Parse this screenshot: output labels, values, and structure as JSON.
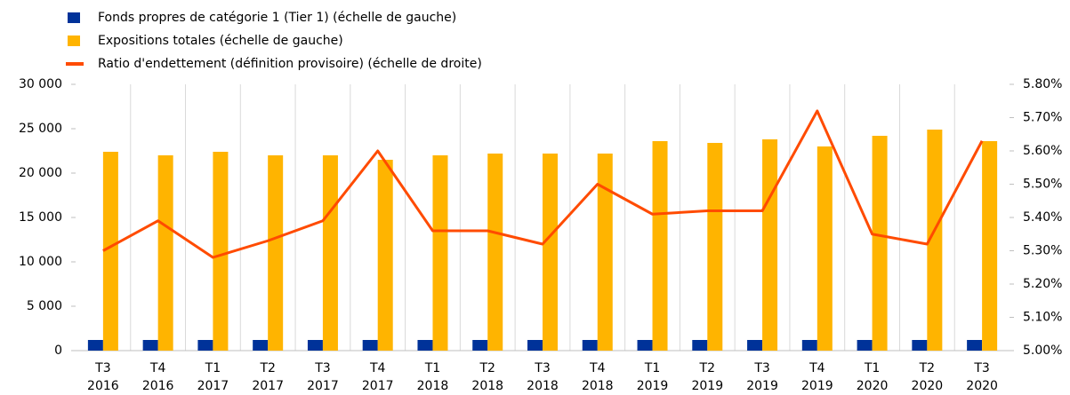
{
  "chart_data": {
    "type": "bar-line",
    "categories": [
      [
        "T3",
        "2016"
      ],
      [
        "T4",
        "2016"
      ],
      [
        "T1",
        "2017"
      ],
      [
        "T2",
        "2017"
      ],
      [
        "T3",
        "2017"
      ],
      [
        "T4",
        "2017"
      ],
      [
        "T1",
        "2018"
      ],
      [
        "T2",
        "2018"
      ],
      [
        "T3",
        "2018"
      ],
      [
        "T4",
        "2018"
      ],
      [
        "T1",
        "2019"
      ],
      [
        "T2",
        "2019"
      ],
      [
        "T3",
        "2019"
      ],
      [
        "T4",
        "2019"
      ],
      [
        "T1",
        "2020"
      ],
      [
        "T2",
        "2020"
      ],
      [
        "T3",
        "2020"
      ]
    ],
    "series": [
      {
        "name": "Fonds propres de catégorie 1 (Tier 1) (échelle de gauche)",
        "type": "bar",
        "color": "#003299",
        "values": [
          1200,
          1200,
          1200,
          1200,
          1200,
          1200,
          1200,
          1200,
          1200,
          1200,
          1200,
          1200,
          1200,
          1200,
          1200,
          1200,
          1200
        ]
      },
      {
        "name": "Expositions totales (échelle de gauche)",
        "type": "bar",
        "color": "#ffb400",
        "values": [
          22400,
          22000,
          22400,
          22000,
          22000,
          21500,
          22000,
          22200,
          22200,
          22200,
          23600,
          23400,
          23800,
          23000,
          24200,
          24900,
          23600
        ]
      },
      {
        "name": "Ratio d'endettement (définition provisoire) (échelle de droite)",
        "type": "line",
        "color": "#ff4b00",
        "axis": "y2",
        "values": [
          5.3,
          5.39,
          5.28,
          5.33,
          5.39,
          5.6,
          5.36,
          5.36,
          5.32,
          5.5,
          5.41,
          5.42,
          5.42,
          5.72,
          5.35,
          5.32,
          5.63
        ]
      }
    ],
    "ylim": [
      0,
      30000
    ],
    "yticks": [
      0,
      {
        "value": 5000,
        "label": "5 000"
      },
      {
        "value": 10000,
        "label": "10 000"
      },
      {
        "value": 15000,
        "label": "15 000"
      },
      {
        "value": 20000,
        "label": "20 000"
      },
      {
        "value": 25000,
        "label": "25 000"
      },
      {
        "value": 30000,
        "label": "30 000"
      }
    ],
    "y2lim": [
      5.0,
      5.8
    ],
    "y2ticks": [
      {
        "value": 5.0,
        "label": "5.00%"
      },
      {
        "value": 5.1,
        "label": "5.10%"
      },
      {
        "value": 5.2,
        "label": "5.20%"
      },
      {
        "value": 5.3,
        "label": "5.30%"
      },
      {
        "value": 5.4,
        "label": "5.40%"
      },
      {
        "value": 5.5,
        "label": "5.50%"
      },
      {
        "value": 5.6,
        "label": "5.60%"
      },
      {
        "value": 5.7,
        "label": "5.70%"
      },
      {
        "value": 5.8,
        "label": "5.80%"
      }
    ]
  }
}
